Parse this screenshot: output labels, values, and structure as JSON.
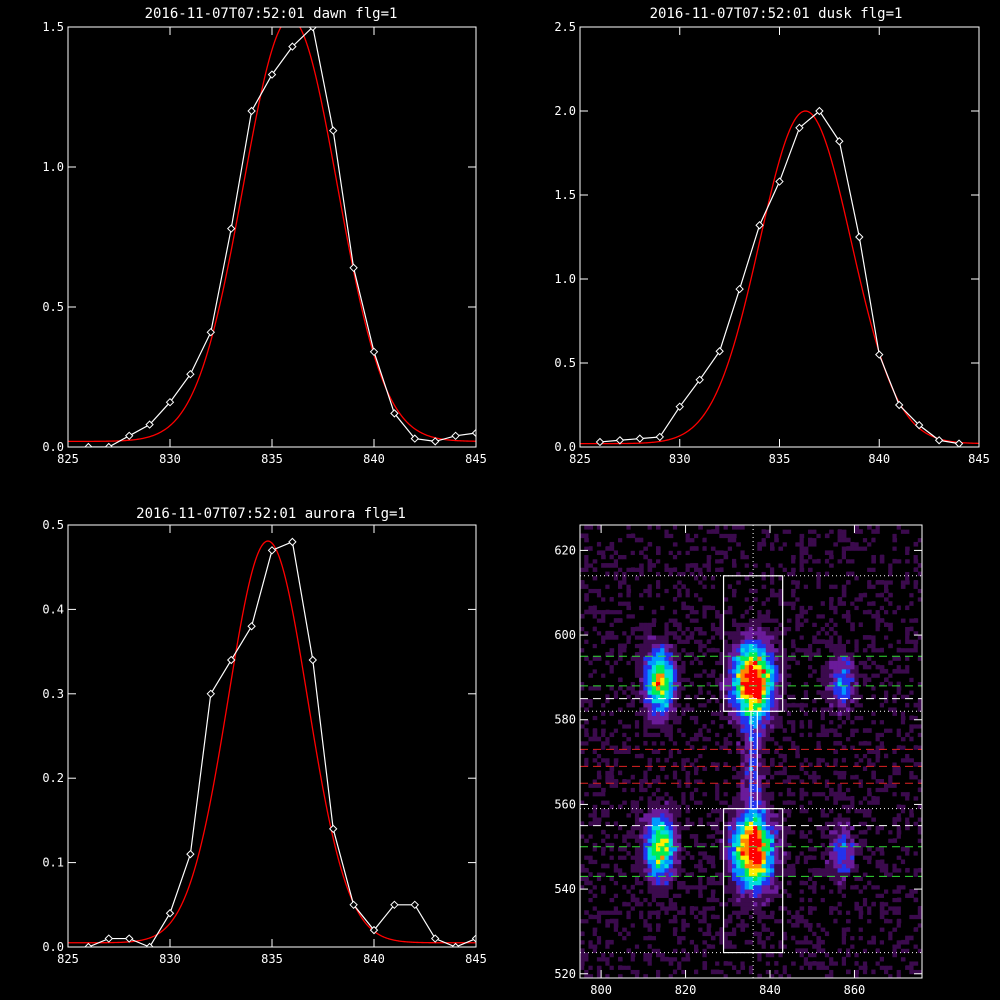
{
  "chart_data": [
    {
      "type": "line",
      "title": "2016-11-07T07:52:01 dawn flg=1",
      "xlim": [
        825,
        845
      ],
      "ylim": [
        0,
        1.5
      ],
      "xticks": [
        825,
        830,
        835,
        840,
        845
      ],
      "yticks": [
        0.0,
        0.5,
        1.0,
        1.5
      ],
      "xtick_labels": [
        "825",
        "830",
        "835",
        "840",
        "845"
      ],
      "ytick_labels": [
        "0.0",
        "0.5",
        "1.0",
        "1.5"
      ],
      "series": [
        {
          "kind": "data",
          "color": "#ffffff",
          "marker": "diamond",
          "x": [
            826,
            827,
            828,
            829,
            830,
            831,
            832,
            833,
            834,
            835,
            836,
            837,
            838,
            839,
            840,
            841,
            842,
            843,
            844,
            845
          ],
          "y": [
            0.0,
            0.0,
            0.04,
            0.08,
            0.16,
            0.26,
            0.41,
            0.78,
            1.2,
            1.33,
            1.43,
            1.5,
            1.13,
            0.64,
            0.34,
            0.12,
            0.03,
            0.02,
            0.04,
            0.05
          ]
        },
        {
          "kind": "gaussian_fit",
          "color": "#ff0000",
          "amplitude": 1.51,
          "center": 835.9,
          "sigma": 2.3,
          "offset": 0.02
        }
      ]
    },
    {
      "type": "line",
      "title": "2016-11-07T07:52:01 dusk flg=1",
      "xlim": [
        825,
        845
      ],
      "ylim": [
        0,
        2.5
      ],
      "xticks": [
        825,
        830,
        835,
        840,
        845
      ],
      "yticks": [
        0.0,
        0.5,
        1.0,
        1.5,
        2.0,
        2.5
      ],
      "xtick_labels": [
        "825",
        "830",
        "835",
        "840",
        "845"
      ],
      "ytick_labels": [
        "0.0",
        "0.5",
        "1.0",
        "1.5",
        "2.0",
        "2.5"
      ],
      "series": [
        {
          "kind": "data",
          "color": "#ffffff",
          "marker": "diamond",
          "x": [
            826,
            827,
            828,
            829,
            830,
            831,
            832,
            833,
            834,
            835,
            836,
            837,
            838,
            839,
            840,
            841,
            842,
            843,
            844
          ],
          "y": [
            0.03,
            0.04,
            0.05,
            0.06,
            0.24,
            0.4,
            0.57,
            0.94,
            1.32,
            1.58,
            1.9,
            2.0,
            1.82,
            1.25,
            0.55,
            0.25,
            0.13,
            0.04,
            0.02
          ]
        },
        {
          "kind": "gaussian_fit",
          "color": "#ff0000",
          "amplitude": 1.98,
          "center": 836.3,
          "sigma": 2.3,
          "offset": 0.02
        }
      ]
    },
    {
      "type": "line",
      "title": "2016-11-07T07:52:01 aurora flg=1",
      "xlim": [
        825,
        845
      ],
      "ylim": [
        0,
        0.5
      ],
      "xticks": [
        825,
        830,
        835,
        840,
        845
      ],
      "yticks": [
        0.0,
        0.1,
        0.2,
        0.3,
        0.4,
        0.5
      ],
      "xtick_labels": [
        "825",
        "830",
        "835",
        "840",
        "845"
      ],
      "ytick_labels": [
        "0.0",
        "0.1",
        "0.2",
        "0.3",
        "0.4",
        "0.5"
      ],
      "series": [
        {
          "kind": "data",
          "color": "#ffffff",
          "marker": "diamond",
          "x": [
            826,
            827,
            828,
            829,
            830,
            831,
            832,
            833,
            834,
            835,
            836,
            837,
            838,
            839,
            840,
            841,
            842,
            843,
            844,
            845
          ],
          "y": [
            0.0,
            0.01,
            0.01,
            0.0,
            0.04,
            0.11,
            0.3,
            0.34,
            0.38,
            0.47,
            0.48,
            0.34,
            0.14,
            0.05,
            0.02,
            0.05,
            0.05,
            0.01,
            0.0,
            0.01
          ]
        },
        {
          "kind": "gaussian_fit",
          "color": "#ff0000",
          "amplitude": 0.476,
          "center": 834.8,
          "sigma": 1.95,
          "offset": 0.005
        }
      ]
    },
    {
      "type": "heatmap",
      "xlim": [
        795,
        876
      ],
      "ylim": [
        519,
        626
      ],
      "xticks": [
        800,
        820,
        840,
        860
      ],
      "yticks": [
        520,
        540,
        560,
        580,
        600,
        620
      ],
      "xtick_labels": [
        "800",
        "820",
        "840",
        "860"
      ],
      "ytick_labels": [
        "520",
        "540",
        "560",
        "580",
        "600",
        "620"
      ],
      "colormap": [
        "#000000",
        "#3b0a4d",
        "#6a1b9a",
        "#2233ee",
        "#0099ff",
        "#00dddd",
        "#00ee55",
        "#ffee00",
        "#ff8800",
        "#ff0000"
      ],
      "blobs": [
        {
          "x": 814,
          "y": 589,
          "sx": 2.4,
          "sy": 5.2,
          "amp": 0.75
        },
        {
          "x": 836,
          "y": 589,
          "sx": 3.2,
          "sy": 6.0,
          "amp": 1.0
        },
        {
          "x": 857,
          "y": 589,
          "sx": 2.2,
          "sy": 4.5,
          "amp": 0.35
        },
        {
          "x": 814,
          "y": 550,
          "sx": 2.4,
          "sy": 5.2,
          "amp": 0.7
        },
        {
          "x": 836,
          "y": 549,
          "sx": 3.2,
          "sy": 6.0,
          "amp": 0.98
        },
        {
          "x": 857,
          "y": 549,
          "sx": 2.2,
          "sy": 4.5,
          "amp": 0.3
        },
        {
          "x": 836,
          "y": 569,
          "sx": 1.6,
          "sy": 8.0,
          "amp": 0.25
        }
      ],
      "vertical_dotted_x": 836,
      "boxes": [
        {
          "x0": 829,
          "x1": 843,
          "y0": 582,
          "y1": 614,
          "color": "#ffffff"
        },
        {
          "x0": 829,
          "x1": 843,
          "y0": 525,
          "y1": 559,
          "color": "#ffffff"
        },
        {
          "x0": 835.5,
          "x1": 837,
          "y0": 559,
          "y1": 582,
          "color": "#ffffff"
        }
      ],
      "hlines": [
        {
          "y": 614,
          "color": "#ffffff",
          "style": "dotted"
        },
        {
          "y": 582,
          "color": "#ffffff",
          "style": "dotted"
        },
        {
          "y": 559,
          "color": "#ffffff",
          "style": "dotted"
        },
        {
          "y": 525,
          "color": "#ffffff",
          "style": "dotted"
        },
        {
          "y": 595,
          "color": "#33dd33",
          "style": "dashed"
        },
        {
          "y": 588,
          "color": "#33dd33",
          "style": "dashed"
        },
        {
          "y": 585,
          "color": "#ffffff",
          "style": "dashed"
        },
        {
          "y": 573,
          "color": "#dd2222",
          "style": "dashed"
        },
        {
          "y": 569,
          "color": "#dd2222",
          "style": "dashed"
        },
        {
          "y": 565,
          "color": "#dd2222",
          "style": "dashed"
        },
        {
          "y": 555,
          "color": "#ffffff",
          "style": "dashed"
        },
        {
          "y": 550,
          "color": "#33dd33",
          "style": "dashed"
        },
        {
          "y": 543,
          "color": "#33dd33",
          "style": "dashed"
        }
      ]
    }
  ]
}
